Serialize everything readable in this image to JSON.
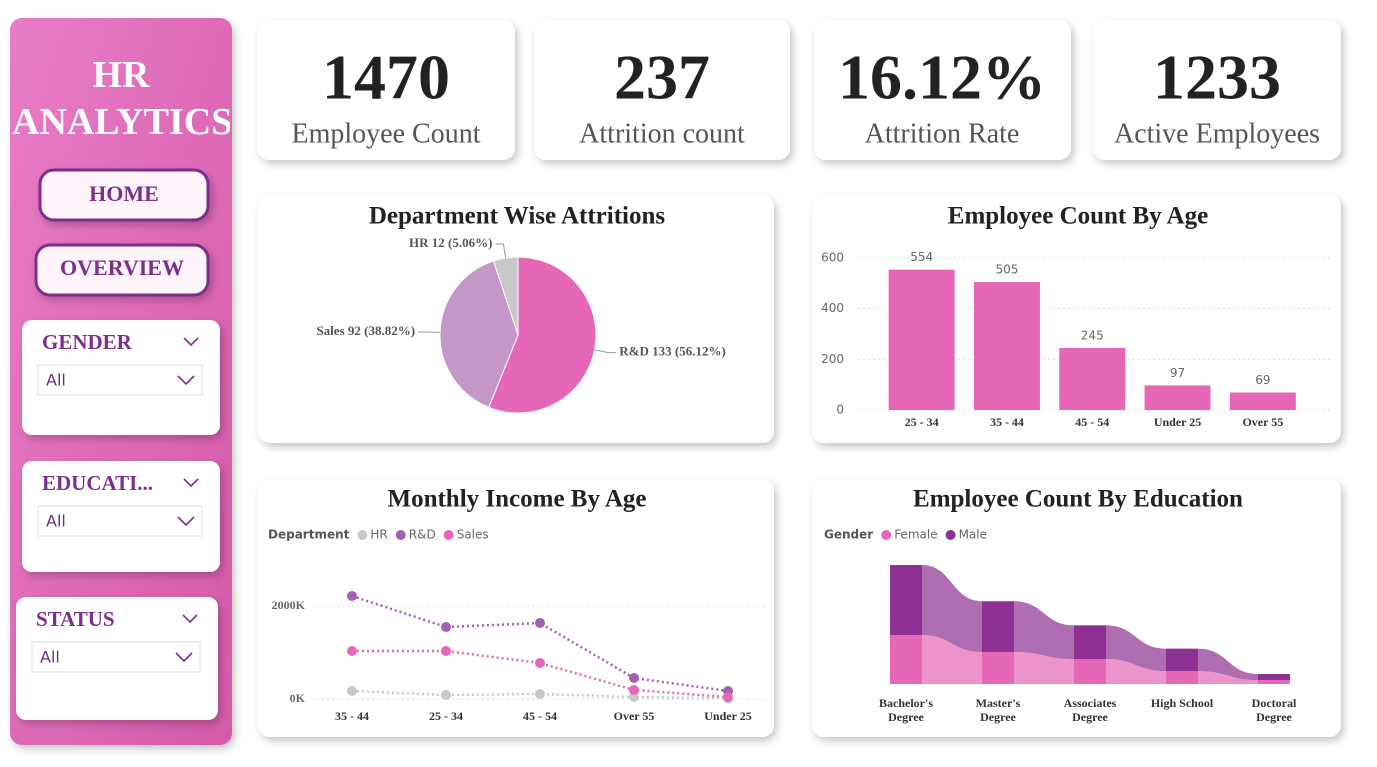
{
  "sidebar": {
    "title": "HR ANALYTICS",
    "buttons": [
      "HOME",
      "OVERVIEW"
    ],
    "filters": [
      {
        "label": "GENDER",
        "value": "All"
      },
      {
        "label": "EDUCATI...",
        "value": "All"
      },
      {
        "label": "STATUS",
        "value": "All"
      }
    ]
  },
  "kpis": [
    {
      "value": "1470",
      "label": "Employee Count"
    },
    {
      "value": "237",
      "label": "Attrition count"
    },
    {
      "value": "16.12%",
      "label": "Attrition Rate"
    },
    {
      "value": "1233",
      "label": "Active Employees"
    }
  ],
  "chart_data": [
    {
      "type": "pie",
      "title": "Department Wise Attritions",
      "values": [
        133,
        92,
        12
      ],
      "value_labels": [
        "R&D 133 (56.12%)",
        "Sales 92 (38.82%)",
        "HR 12 (5.06%)"
      ],
      "colors": [
        "#e667b8",
        "#c497c8",
        "#c8c8c8"
      ]
    },
    {
      "type": "bar",
      "title": "Employee Count By Age",
      "categories": [
        "25 - 34",
        "35 - 44",
        "45 - 54",
        "Under 25",
        "Over 55"
      ],
      "values": [
        554,
        505,
        245,
        97,
        69
      ],
      "color": "#e667b8",
      "ylim": [
        0,
        600
      ],
      "yticks": [
        0,
        200,
        400,
        600
      ],
      "grid": true
    },
    {
      "type": "line",
      "title": "Monthly Income By Age",
      "legend_title": "Department",
      "categories": [
        "35 - 44",
        "25 - 34",
        "45 - 54",
        "Over 55",
        "Under 25"
      ],
      "series": [
        {
          "name": "HR",
          "color": "#c8c8c8",
          "values": [
            172000,
            86000,
            108000,
            43000,
            10000
          ]
        },
        {
          "name": "R&D",
          "color": "#a35fb3",
          "values": [
            2215000,
            1548000,
            1634000,
            452000,
            172000
          ]
        },
        {
          "name": "Sales",
          "color": "#e667b8",
          "values": [
            1032000,
            1032000,
            774000,
            194000,
            43000
          ]
        }
      ],
      "ylim": [
        0,
        3000000
      ],
      "yticks": [
        {
          "value": 0,
          "label": "0K"
        },
        {
          "value": 2000000,
          "label": "2000K"
        }
      ],
      "grid": true
    },
    {
      "type": "ribbon",
      "title": "Employee Count By Education",
      "legend_title": "Gender",
      "categories": [
        "Bachelor's Degree",
        "Master's Degree",
        "Associates Degree",
        "High School",
        "Doctoral Degree"
      ],
      "series": [
        {
          "name": "Female",
          "color": "#e667b8",
          "values": [
            235,
            154,
            120,
            62,
            19
          ]
        },
        {
          "name": "Male",
          "color": "#8e3192",
          "values": [
            337,
            244,
            162,
            108,
            29
          ]
        }
      ]
    }
  ]
}
